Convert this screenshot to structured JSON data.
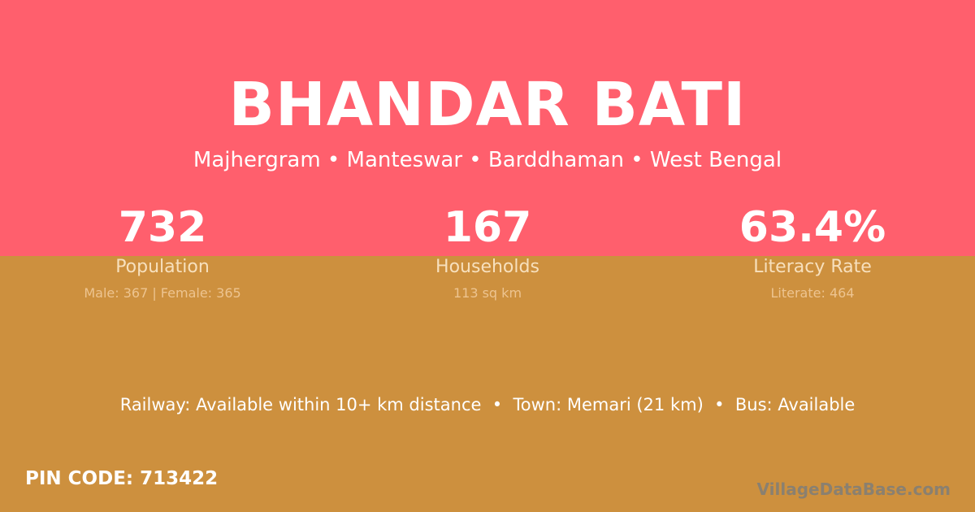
{
  "title": "BHANDAR BATI",
  "subtitle": "Majhergram • Manteswar • Barddhaman • West Bengal",
  "stats": [
    {
      "value": "732",
      "label": "Population",
      "detail": "Male: 367 | Female: 365"
    },
    {
      "value": "167",
      "label": "Households",
      "detail": "113 sq km"
    },
    {
      "value": "63.4%",
      "label": "Literacy Rate",
      "detail": "Literate: 464"
    }
  ],
  "transport": "Railway: Available within 10+ km distance  •  Town: Memari (21 km)  •  Bus: Available",
  "pin_code": "PIN CODE: 713422",
  "watermark": "VillageDataBase.com",
  "colors": {
    "top_background": "#FF5F6D",
    "bottom_background": "#CD903E"
  }
}
